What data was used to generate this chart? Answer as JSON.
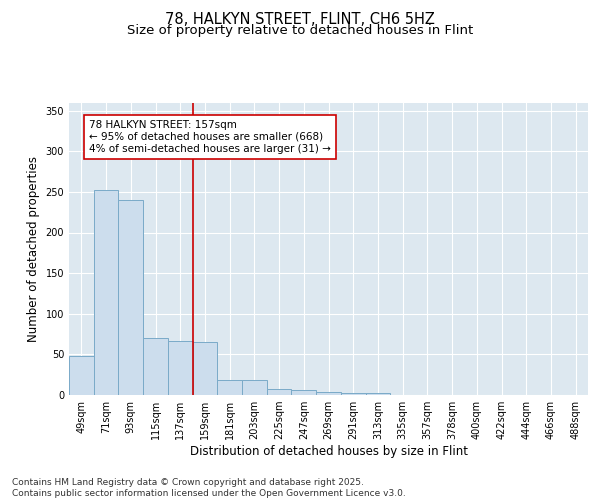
{
  "title_line1": "78, HALKYN STREET, FLINT, CH6 5HZ",
  "title_line2": "Size of property relative to detached houses in Flint",
  "xlabel": "Distribution of detached houses by size in Flint",
  "ylabel": "Number of detached properties",
  "bar_labels": [
    "49sqm",
    "71sqm",
    "93sqm",
    "115sqm",
    "137sqm",
    "159sqm",
    "181sqm",
    "203sqm",
    "225sqm",
    "247sqm",
    "269sqm",
    "291sqm",
    "313sqm",
    "335sqm",
    "357sqm",
    "378sqm",
    "400sqm",
    "422sqm",
    "444sqm",
    "466sqm",
    "488sqm"
  ],
  "bar_values": [
    48,
    252,
    240,
    70,
    67,
    65,
    18,
    18,
    8,
    6,
    4,
    3,
    2,
    0,
    0,
    0,
    0,
    0,
    0,
    0,
    0
  ],
  "bar_color": "#ccdded",
  "bar_edge_color": "#7aaac8",
  "red_line_index": 5,
  "red_line_color": "#cc0000",
  "annotation_text": "78 HALKYN STREET: 157sqm\n← 95% of detached houses are smaller (668)\n4% of semi-detached houses are larger (31) →",
  "annotation_box_color": "#ffffff",
  "annotation_box_edge_color": "#cc0000",
  "ylim": [
    0,
    360
  ],
  "yticks": [
    0,
    50,
    100,
    150,
    200,
    250,
    300,
    350
  ],
  "background_color": "#dde8f0",
  "footer_text": "Contains HM Land Registry data © Crown copyright and database right 2025.\nContains public sector information licensed under the Open Government Licence v3.0.",
  "title_fontsize": 10.5,
  "subtitle_fontsize": 9.5,
  "axis_label_fontsize": 8.5,
  "tick_fontsize": 7,
  "annotation_fontsize": 7.5,
  "footer_fontsize": 6.5
}
